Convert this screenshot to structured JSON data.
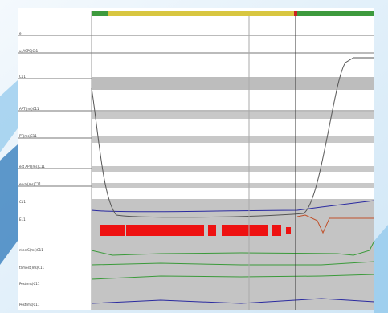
{
  "labels": [
    "e",
    "u_ASPS(C)1",
    "C11",
    "APT(ms)C11",
    "PT(ms)C11",
    "est APT(ms)C11",
    "erval(ms)C11",
    "C11",
    "E11",
    "ntestS(ms)C11",
    "tSmest(ms)C11",
    "Pest(ms)C11",
    "Pest(ms)C11"
  ]
}
